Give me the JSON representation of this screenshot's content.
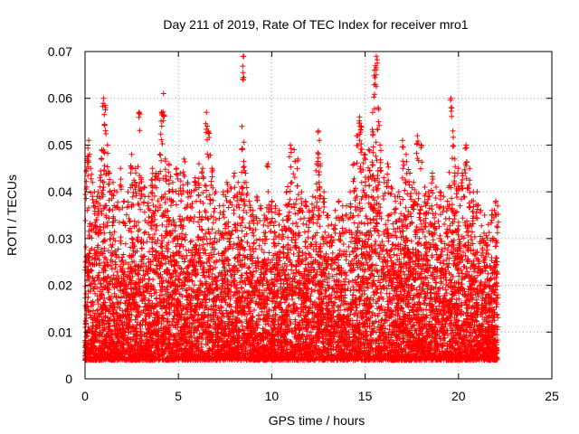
{
  "chart_data": {
    "type": "scatter",
    "title": "Day 211 of 2019, Rate Of TEC Index for receiver mro1",
    "xlabel": "GPS time / hours",
    "ylabel": "ROTI / TECUs",
    "xlim": [
      0,
      25
    ],
    "ylim": [
      0,
      0.07
    ],
    "x_ticks": [
      "0",
      "5",
      "10",
      "15",
      "20",
      "25"
    ],
    "y_ticks": [
      "0",
      "0.01",
      "0.02",
      "0.03",
      "0.04",
      "0.05",
      "0.06",
      "0.07"
    ],
    "grid": true,
    "marker": "plus",
    "color": "#ff0000",
    "series": [
      {
        "x": [
          0.1,
          0.2,
          0.3,
          0.4,
          0.5,
          0.6,
          0.7,
          0.8,
          0.9,
          1.0,
          1.1,
          1.2,
          1.3,
          1.5,
          1.7,
          1.9,
          2.1,
          2.3,
          2.5,
          2.7,
          2.9,
          3.0,
          3.2,
          3.4,
          3.6,
          3.8,
          4.0,
          4.1,
          4.2,
          4.3,
          4.5,
          4.7,
          4.9,
          5.1,
          5.3,
          5.5,
          5.7,
          5.9,
          6.1,
          6.3,
          6.5,
          6.6,
          6.8,
          7.0,
          7.2,
          7.4,
          7.6,
          7.8,
          8.0,
          8.2,
          8.4,
          8.5,
          8.6,
          8.8,
          9.0,
          9.2,
          9.4,
          9.6,
          9.8,
          10.0,
          10.2,
          10.4,
          10.6,
          10.8,
          11.0,
          11.2,
          11.4,
          11.6,
          11.8,
          12.0,
          12.2,
          12.4,
          12.5,
          12.6,
          12.8,
          13.0,
          13.2,
          13.4,
          13.6,
          13.8,
          14.0,
          14.2,
          14.4,
          14.6,
          14.7,
          14.8,
          15.0,
          15.2,
          15.4,
          15.5,
          15.6,
          15.7,
          15.8,
          16.0,
          16.2,
          16.4,
          16.6,
          16.8,
          17.0,
          17.2,
          17.4,
          17.6,
          17.8,
          18.0,
          18.2,
          18.4,
          18.6,
          18.8,
          19.0,
          19.2,
          19.4,
          19.6,
          19.7,
          19.8,
          20.0,
          20.2,
          20.4,
          20.6,
          20.8,
          21.0,
          21.2,
          21.4,
          21.6,
          21.8,
          22.0,
          22.1
        ],
        "y_high": [
          0.047,
          0.051,
          0.045,
          0.042,
          0.04,
          0.038,
          0.04,
          0.043,
          0.049,
          0.06,
          0.058,
          0.05,
          0.044,
          0.042,
          0.04,
          0.045,
          0.038,
          0.04,
          0.048,
          0.045,
          0.057,
          0.043,
          0.041,
          0.039,
          0.045,
          0.044,
          0.048,
          0.057,
          0.061,
          0.047,
          0.046,
          0.042,
          0.045,
          0.044,
          0.047,
          0.042,
          0.04,
          0.043,
          0.046,
          0.045,
          0.057,
          0.053,
          0.045,
          0.04,
          0.037,
          0.04,
          0.042,
          0.041,
          0.044,
          0.042,
          0.054,
          0.069,
          0.044,
          0.038,
          0.036,
          0.039,
          0.037,
          0.035,
          0.046,
          0.038,
          0.037,
          0.036,
          0.034,
          0.04,
          0.05,
          0.049,
          0.047,
          0.04,
          0.038,
          0.036,
          0.039,
          0.046,
          0.053,
          0.046,
          0.04,
          0.035,
          0.033,
          0.036,
          0.038,
          0.037,
          0.037,
          0.04,
          0.046,
          0.052,
          0.056,
          0.054,
          0.048,
          0.049,
          0.057,
          0.066,
          0.069,
          0.058,
          0.05,
          0.043,
          0.046,
          0.041,
          0.039,
          0.04,
          0.051,
          0.048,
          0.044,
          0.042,
          0.052,
          0.05,
          0.041,
          0.04,
          0.044,
          0.041,
          0.04,
          0.039,
          0.038,
          0.06,
          0.053,
          0.047,
          0.045,
          0.044,
          0.05,
          0.045,
          0.04,
          0.04,
          0.036,
          0.035,
          0.033,
          0.036,
          0.038,
          0.037
        ]
      }
    ]
  }
}
